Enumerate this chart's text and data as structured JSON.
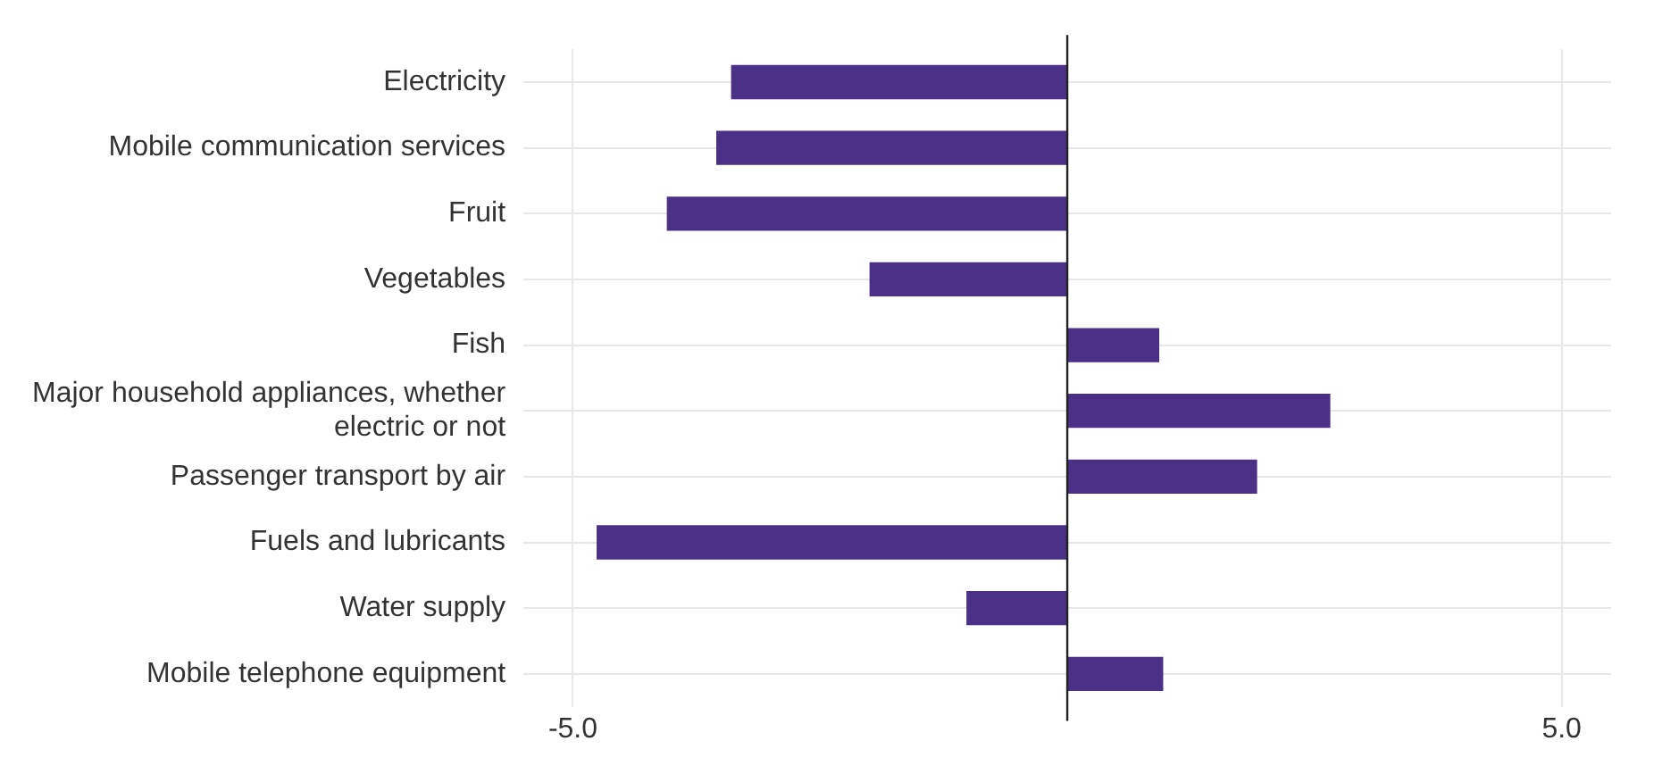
{
  "chart_data": {
    "type": "bar",
    "orientation": "horizontal",
    "categories": [
      "Electricity",
      "Mobile communication services",
      "Fruit",
      "Vegetables",
      "Fish",
      "Major household appliances, whether electric or not",
      "Passenger transport by air",
      "Fuels and lubricants",
      "Water supply",
      "Mobile telephone equipment"
    ],
    "values": [
      -3.4,
      -3.55,
      -4.05,
      -2.0,
      0.93,
      2.66,
      1.92,
      -4.76,
      -1.02,
      0.97
    ],
    "color": "#4b3087",
    "xlim": [
      -5.5,
      5.5
    ],
    "xticks": [
      {
        "value": -5,
        "label": "-5.0"
      },
      {
        "value": 5,
        "label": "5.0"
      }
    ],
    "ref_lines": [
      {
        "axis": "x",
        "value": 0,
        "label": null,
        "color": "#222222"
      }
    ],
    "grid": true,
    "legend": false
  }
}
